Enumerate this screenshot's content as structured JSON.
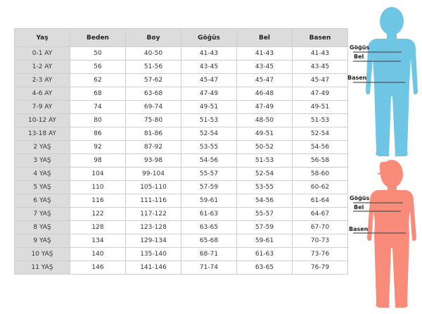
{
  "table": {
    "headers": [
      "Yaş",
      "Beden",
      "Boy",
      "Göğüs",
      "Bel",
      "Basen"
    ],
    "rows": [
      [
        "0-1 AY",
        "50",
        "40-50",
        "41-43",
        "41-43",
        "41-43"
      ],
      [
        "1-2 AY",
        "56",
        "51-56",
        "43-45",
        "43-45",
        "43-45"
      ],
      [
        "2-3 AY",
        "62",
        "57-62",
        "45-47",
        "45-47",
        "45-47"
      ],
      [
        "4-6 AY",
        "68",
        "63-68",
        "47-49",
        "46-48",
        "47-49"
      ],
      [
        "7-9 AY",
        "74",
        "69-74",
        "49-51",
        "47-49",
        "49-51"
      ],
      [
        "10-12 AY",
        "80",
        "75-80",
        "51-53",
        "48-50",
        "51-53"
      ],
      [
        "13-18 AY",
        "86",
        "81-86",
        "52-54",
        "49-51",
        "52-54"
      ],
      [
        "2 YAŞ",
        "92",
        "87-92",
        "53-55",
        "50-52",
        "54-56"
      ],
      [
        "3 YAŞ",
        "98",
        "93-98",
        "54-56",
        "51-53",
        "56-58"
      ],
      [
        "4 YAŞ",
        "104",
        "99-104",
        "55-57",
        "52-54",
        "58-60"
      ],
      [
        "5 YAŞ",
        "110",
        "105-110",
        "57-59",
        "53-55",
        "60-62"
      ],
      [
        "6 YAŞ",
        "116",
        "111-116",
        "59-61",
        "54-56",
        "61-64"
      ],
      [
        "7 YAŞ",
        "122",
        "117-122",
        "61-63",
        "55-57",
        "64-67"
      ],
      [
        "8 YAŞ",
        "128",
        "123-128",
        "63-65",
        "57-59",
        "67-70"
      ],
      [
        "9 YAŞ",
        "134",
        "129-134",
        "65-68",
        "59-61",
        "70-73"
      ],
      [
        "10 YAŞ",
        "140",
        "135-140",
        "68-71",
        "61-63",
        "73-76"
      ],
      [
        "11 YAŞ",
        "146",
        "141-146",
        "71-74",
        "63-65",
        "76-79"
      ]
    ]
  },
  "figures": {
    "boy": {
      "color": "#6ec6e4",
      "labels": {
        "chest": "Göğüs",
        "waist": "Bel",
        "hip": "Basen"
      }
    },
    "girl": {
      "color": "#f98b7a",
      "labels": {
        "chest": "Göğüs",
        "waist": "Bel",
        "hip": "Basen"
      }
    }
  }
}
